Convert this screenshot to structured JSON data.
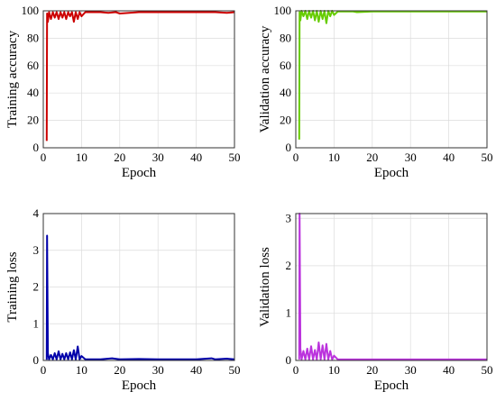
{
  "chart_data": [
    {
      "type": "line",
      "xlabel": "Epoch",
      "ylabel": "Training accuracy",
      "xlim": [
        0,
        50
      ],
      "ylim": [
        0,
        100
      ],
      "xticks": [
        0,
        10,
        20,
        30,
        40,
        50
      ],
      "yticks": [
        0,
        20,
        40,
        60,
        80,
        100
      ],
      "grid": true,
      "color": "#cc0000",
      "series": [
        {
          "x": [
            0.9,
            1,
            1.2,
            1.5,
            2,
            2.5,
            3,
            3.5,
            4,
            4.5,
            5,
            5.5,
            6,
            6.5,
            7,
            7.5,
            8,
            8.5,
            9,
            9.5,
            10,
            11,
            12,
            15,
            17,
            19,
            20,
            25,
            30,
            35,
            40,
            45,
            48,
            50
          ],
          "y": [
            5,
            98,
            92,
            99,
            94,
            99,
            95,
            99,
            94,
            99,
            95,
            99,
            94,
            99,
            96,
            99,
            92,
            99,
            94,
            99,
            96,
            99,
            99,
            99,
            98.5,
            99,
            98,
            99,
            99,
            99,
            99,
            99,
            98.5,
            99
          ]
        }
      ]
    },
    {
      "type": "line",
      "xlabel": "Epoch",
      "ylabel": "Validation accuracy",
      "xlim": [
        0,
        50
      ],
      "ylim": [
        0,
        100
      ],
      "xticks": [
        0,
        10,
        20,
        30,
        40,
        50
      ],
      "yticks": [
        0,
        20,
        40,
        60,
        80,
        100
      ],
      "grid": true,
      "color": "#66cc00",
      "series": [
        {
          "x": [
            0.9,
            1,
            1.2,
            1.5,
            2,
            2.5,
            3,
            3.5,
            4,
            4.5,
            5,
            5.5,
            6,
            6.5,
            7,
            7.5,
            8,
            8.5,
            9,
            9.5,
            10,
            11,
            12,
            15,
            16,
            20,
            25,
            30,
            35,
            40,
            45,
            50
          ],
          "y": [
            6,
            99,
            93,
            100,
            96,
            100,
            94,
            100,
            95,
            100,
            93,
            100,
            92,
            100,
            94,
            100,
            91,
            100,
            96,
            100,
            97,
            99.5,
            99.5,
            99.5,
            99,
            99.5,
            99.5,
            99.5,
            99.5,
            99.5,
            99.5,
            99.5
          ]
        }
      ]
    },
    {
      "type": "line",
      "xlabel": "Epoch",
      "ylabel": "Training loss",
      "xlim": [
        0,
        50
      ],
      "ylim": [
        0,
        4
      ],
      "xticks": [
        0,
        10,
        20,
        30,
        40,
        50
      ],
      "yticks": [
        0,
        1,
        2,
        3,
        4
      ],
      "grid": true,
      "color": "#0000aa",
      "series": [
        {
          "x": [
            0.9,
            1,
            1.2,
            1.5,
            2,
            2.5,
            3,
            3.5,
            4,
            4.5,
            5,
            5.5,
            6,
            6.5,
            7,
            7.5,
            8,
            8.5,
            9,
            9.5,
            10,
            11,
            12,
            15,
            18,
            20,
            25,
            30,
            35,
            40,
            44,
            45,
            48,
            50
          ],
          "y": [
            0.02,
            3.4,
            0.2,
            0.03,
            0.15,
            0.03,
            0.2,
            0.03,
            0.25,
            0.03,
            0.18,
            0.03,
            0.2,
            0.03,
            0.22,
            0.03,
            0.28,
            0.03,
            0.38,
            0.03,
            0.12,
            0.03,
            0.03,
            0.03,
            0.06,
            0.03,
            0.04,
            0.03,
            0.03,
            0.03,
            0.06,
            0.03,
            0.05,
            0.03
          ]
        }
      ]
    },
    {
      "type": "line",
      "xlabel": "Epoch",
      "ylabel": "Validation loss",
      "xlim": [
        0,
        50
      ],
      "ylim": [
        0,
        3.1
      ],
      "xticks": [
        0,
        10,
        20,
        30,
        40,
        50
      ],
      "yticks": [
        0,
        1,
        2,
        3
      ],
      "grid": true,
      "color": "#bb33dd",
      "series": [
        {
          "x": [
            0.9,
            1,
            1.2,
            1.5,
            2,
            2.5,
            3,
            3.5,
            4,
            4.5,
            5,
            5.5,
            6,
            6.5,
            7,
            7.5,
            8,
            8.5,
            9,
            9.5,
            10,
            11,
            12,
            15,
            20,
            25,
            30,
            35,
            40,
            45,
            50
          ],
          "y": [
            0.02,
            3.1,
            0.25,
            0.02,
            0.2,
            0.02,
            0.25,
            0.02,
            0.3,
            0.02,
            0.22,
            0.02,
            0.38,
            0.02,
            0.32,
            0.02,
            0.35,
            0.02,
            0.2,
            0.02,
            0.1,
            0.02,
            0.02,
            0.02,
            0.02,
            0.02,
            0.02,
            0.02,
            0.02,
            0.02,
            0.02
          ]
        }
      ]
    }
  ]
}
